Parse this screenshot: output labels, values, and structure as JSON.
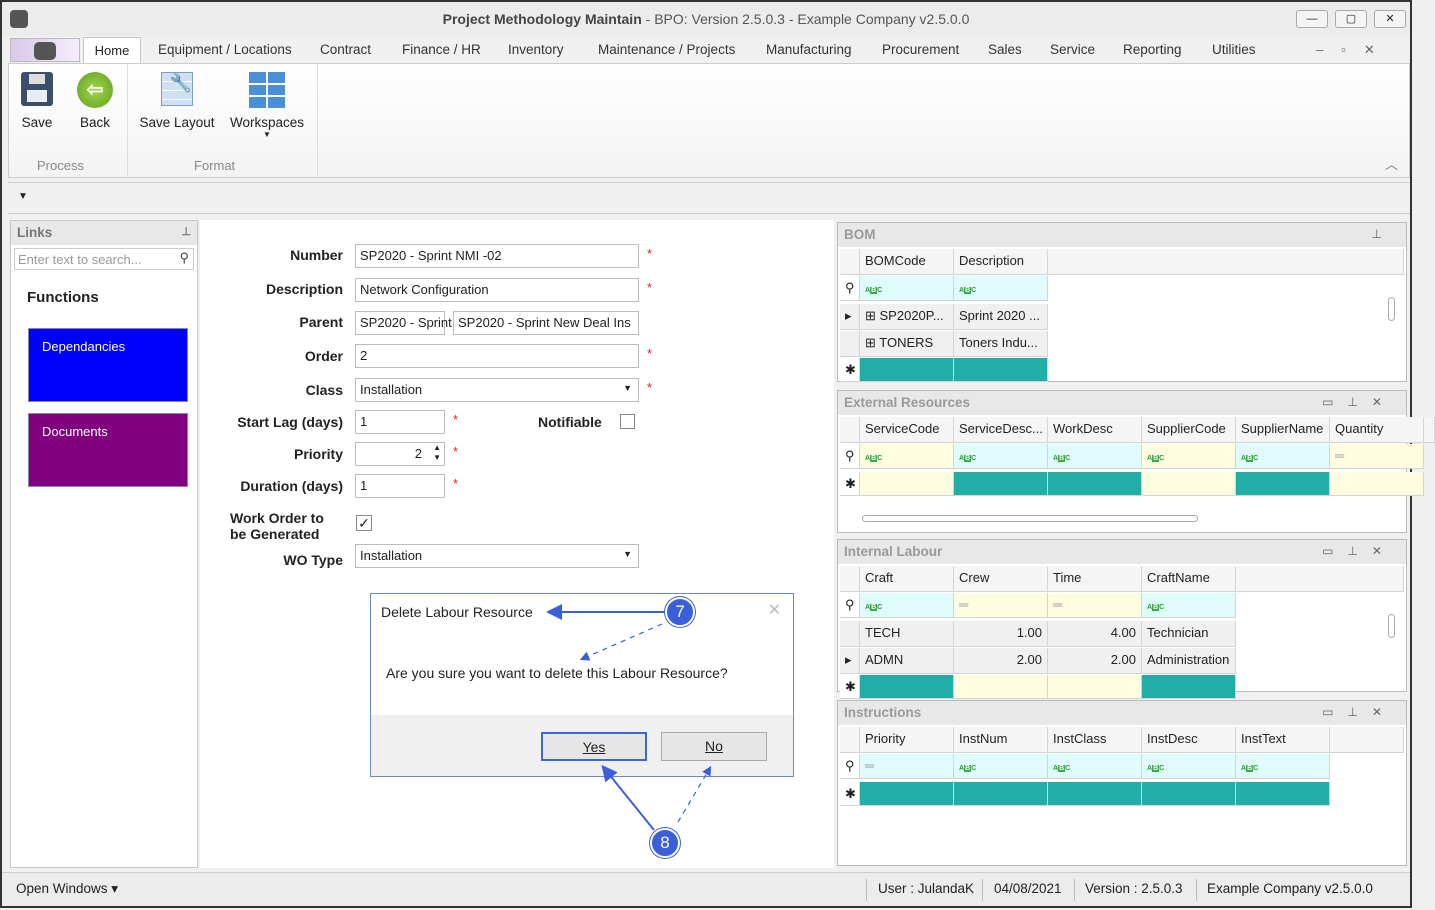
{
  "window": {
    "title": "Project Methodology Maintain",
    "subtitle": " - BPO: Version 2.5.0.3 - Example Company v2.5.0.0",
    "minimize": "—",
    "maximize": "▢",
    "close": "✕"
  },
  "tabs": [
    "Home",
    "Equipment / Locations",
    "Contract",
    "Finance / HR",
    "Inventory",
    "Maintenance / Projects",
    "Manufacturing",
    "Procurement",
    "Sales",
    "Service",
    "Reporting",
    "Utilities"
  ],
  "ribbon": {
    "save": "Save",
    "back": "Back",
    "save_layout": "Save Layout",
    "workspaces": "Workspaces",
    "group_process": "Process",
    "group_format": "Format"
  },
  "links": {
    "title": "Links",
    "search_placeholder": "Enter text to search...",
    "functions": "Functions",
    "items": [
      {
        "label": "Dependancies",
        "color": "#0000ff"
      },
      {
        "label": "Documents",
        "color": "#800080"
      }
    ]
  },
  "form": {
    "number_label": "Number",
    "number": "SP2020 - Sprint NMI -02",
    "description_label": "Description",
    "description": "Network Configuration",
    "parent_label": "Parent",
    "parent_code": "SP2020 - Sprint",
    "parent_desc": "SP2020 - Sprint New Deal Ins",
    "order_label": "Order",
    "order": "2",
    "class_label": "Class",
    "class": "Installation",
    "start_lag_label": "Start Lag (days)",
    "start_lag": "1",
    "notifiable_label": "Notifiable",
    "notifiable": false,
    "priority_label": "Priority",
    "priority": "2",
    "duration_label": "Duration (days)",
    "duration": "1",
    "work_order_label": "Work Order to be Generated",
    "work_order": true,
    "wo_type_label": "WO Type",
    "wo_type": "Installation",
    "required": "*"
  },
  "dialog": {
    "title": "Delete Labour Resource",
    "message": "Are you sure you want to delete this Labour Resource?",
    "yes": "Yes",
    "no": "No"
  },
  "callouts": [
    "7",
    "8"
  ],
  "grids": [
    {
      "title": "BOM",
      "columns": [
        {
          "name": "BOMCode",
          "filter": "abc",
          "fbg": "#e0fbfb",
          "nbg": "#20aea6"
        },
        {
          "name": "Description",
          "filter": "abc",
          "fbg": "#e0fbfb",
          "nbg": "#20aea6"
        }
      ],
      "rows": [
        [
          "SP2020P...",
          "Sprint 2020 ..."
        ],
        [
          "TONERS",
          "Toners Indu..."
        ]
      ],
      "expandable": true
    },
    {
      "title": "External Resources",
      "columns": [
        {
          "name": "ServiceCode",
          "filter": "abc",
          "fbg": "#fffde0",
          "nbg": "#fffde0"
        },
        {
          "name": "ServiceDesc...",
          "filter": "abc",
          "fbg": "#e0fbfb",
          "nbg": "#20aea6"
        },
        {
          "name": "WorkDesc",
          "filter": "abc",
          "fbg": "#e0fbfb",
          "nbg": "#20aea6"
        },
        {
          "name": "SupplierCode",
          "filter": "abc",
          "fbg": "#fffde0",
          "nbg": "#fffde0"
        },
        {
          "name": "SupplierName",
          "filter": "abc",
          "fbg": "#e0fbfb",
          "nbg": "#20aea6"
        },
        {
          "name": "Quantity",
          "filter": "eq",
          "fbg": "#fffde0",
          "nbg": "#fffde0"
        }
      ],
      "rows": []
    },
    {
      "title": "Internal Labour",
      "columns": [
        {
          "name": "Craft",
          "filter": "abc",
          "fbg": "#e0fbfb",
          "nbg": "#20aea6"
        },
        {
          "name": "Crew",
          "filter": "eq",
          "fbg": "#fffde0",
          "nbg": "#fffde0"
        },
        {
          "name": "Time",
          "filter": "eq",
          "fbg": "#fffde0",
          "nbg": "#fffde0"
        },
        {
          "name": "CraftName",
          "filter": "abc",
          "fbg": "#e0fbfb",
          "nbg": "#20aea6"
        }
      ],
      "rows": [
        [
          "TECH",
          "1.00",
          "4.00",
          "Technician"
        ],
        [
          "ADMN",
          "2.00",
          "2.00",
          "Administration"
        ]
      ]
    },
    {
      "title": "Instructions",
      "columns": [
        {
          "name": "Priority",
          "filter": "eq",
          "fbg": "#e0fbfb",
          "nbg": "#20aea6"
        },
        {
          "name": "InstNum",
          "filter": "abc",
          "fbg": "#e0fbfb",
          "nbg": "#20aea6"
        },
        {
          "name": "InstClass",
          "filter": "abc",
          "fbg": "#e0fbfb",
          "nbg": "#20aea6"
        },
        {
          "name": "InstDesc",
          "filter": "abc",
          "fbg": "#e0fbfb",
          "nbg": "#20aea6"
        },
        {
          "name": "InstText",
          "filter": "abc",
          "fbg": "#e0fbfb",
          "nbg": "#20aea6"
        }
      ],
      "rows": []
    }
  ],
  "status": {
    "open_windows": "Open Windows ▾",
    "user": "User : JulandaK",
    "date": "04/08/2021",
    "version": "Version : 2.5.0.3",
    "company": "Example Company v2.5.0.0"
  }
}
